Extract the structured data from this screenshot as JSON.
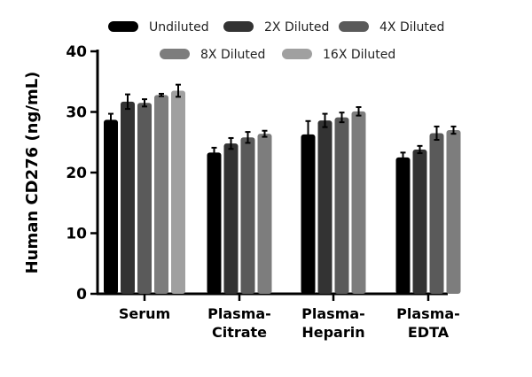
{
  "chart_data": {
    "type": "bar",
    "title": "",
    "xlabel": "",
    "ylabel": "Human  CD276 (ng/mL)",
    "ylim": [
      0,
      40
    ],
    "yticks": [
      0,
      10,
      20,
      30,
      40
    ],
    "grid": false,
    "legend_placement": "top",
    "categories": [
      [
        "Serum"
      ],
      [
        "Plasma-",
        "Citrate"
      ],
      [
        "Plasma-",
        "Heparin"
      ],
      [
        "Plasma-",
        "EDTA"
      ]
    ],
    "series": [
      {
        "name": "Undiluted",
        "color": "#000000",
        "values": [
          28.7,
          23.3,
          26.3,
          22.5
        ],
        "errors": [
          1.0,
          0.8,
          2.2,
          0.8
        ]
      },
      {
        "name": "2X Diluted",
        "color": "#333333",
        "values": [
          31.7,
          24.8,
          28.6,
          23.8
        ],
        "errors": [
          1.2,
          0.9,
          1.1,
          0.6
        ]
      },
      {
        "name": "4X Diluted",
        "color": "#5a5a5a",
        "values": [
          31.5,
          25.8,
          29.1,
          26.5
        ],
        "errors": [
          0.6,
          0.9,
          0.8,
          1.1
        ]
      },
      {
        "name": "8X Diluted",
        "color": "#7d7d7d",
        "values": [
          32.8,
          26.4,
          30.1,
          27.0
        ],
        "errors": [
          0.2,
          0.5,
          0.7,
          0.6
        ]
      },
      {
        "name": "16X Diluted",
        "color": "#a0a0a0",
        "values": [
          33.5,
          null,
          null,
          null
        ],
        "errors": [
          1.0,
          null,
          null,
          null
        ]
      }
    ]
  }
}
